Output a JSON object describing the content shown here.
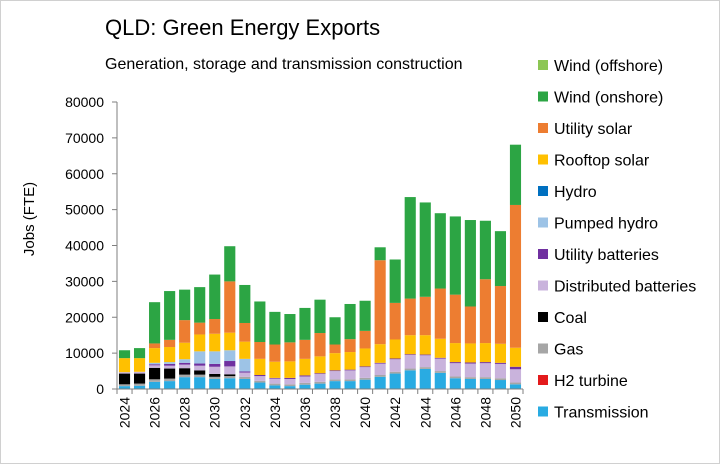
{
  "chart_data": {
    "type": "bar",
    "stacked": true,
    "title": "QLD: Green Energy Exports",
    "subtitle": "Generation, storage and transmission construction",
    "ylabel": "Jobs (FTE)",
    "xlabel": "",
    "ylim": [
      0,
      80000
    ],
    "yticks": [
      "0",
      "10000",
      "20000",
      "30000",
      "40000",
      "50000",
      "60000",
      "70000",
      "80000"
    ],
    "categories": [
      "2024",
      "2025",
      "2026",
      "2027",
      "2028",
      "2029",
      "2030",
      "2031",
      "2032",
      "2033",
      "2034",
      "2035",
      "2036",
      "2037",
      "2038",
      "2039",
      "2040",
      "2041",
      "2042",
      "2043",
      "2044",
      "2045",
      "2046",
      "2047",
      "2048",
      "2049",
      "2050"
    ],
    "x_tick_labels": [
      "2024",
      "2026",
      "2028",
      "2030",
      "2032",
      "2034",
      "2036",
      "2038",
      "2040",
      "2042",
      "2044",
      "2046",
      "2048",
      "2050"
    ],
    "legend_position": "right",
    "series": [
      {
        "name": "Transmission",
        "color": "#29abe2",
        "values": [
          800,
          900,
          2000,
          2200,
          3300,
          3300,
          2800,
          3000,
          2800,
          1800,
          1000,
          800,
          1200,
          1500,
          2200,
          2200,
          2600,
          3400,
          4300,
          5200,
          5600,
          4500,
          3000,
          2800,
          2800,
          2500,
          1300
        ]
      },
      {
        "name": "H2 turbine",
        "color": "#e31a1c",
        "values": [
          0,
          0,
          0,
          0,
          0,
          0,
          0,
          0,
          0,
          0,
          0,
          0,
          0,
          0,
          0,
          0,
          0,
          0,
          0,
          0,
          0,
          0,
          0,
          0,
          0,
          0,
          0
        ]
      },
      {
        "name": "Gas",
        "color": "#a6a6a6",
        "values": [
          500,
          600,
          700,
          700,
          700,
          700,
          600,
          600,
          600,
          500,
          500,
          500,
          500,
          500,
          500,
          500,
          500,
          500,
          500,
          500,
          500,
          500,
          500,
          500,
          500,
          500,
          500
        ]
      },
      {
        "name": "Coal",
        "color": "#000000",
        "values": [
          3000,
          2800,
          3200,
          2800,
          1800,
          1200,
          800,
          500,
          0,
          0,
          0,
          0,
          0,
          0,
          0,
          0,
          0,
          0,
          0,
          0,
          0,
          0,
          0,
          0,
          0,
          0,
          0
        ]
      },
      {
        "name": "Distributed batteries",
        "color": "#c9b3dc",
        "values": [
          400,
          500,
          700,
          800,
          1000,
          1300,
          2000,
          2200,
          1200,
          1300,
          1400,
          1500,
          1800,
          2200,
          2300,
          2500,
          3000,
          3200,
          3500,
          3800,
          3300,
          3500,
          3700,
          3800,
          3900,
          4000,
          3700
        ]
      },
      {
        "name": "Utility batteries",
        "color": "#7030a0",
        "values": [
          0,
          0,
          300,
          500,
          500,
          600,
          800,
          1500,
          300,
          300,
          200,
          300,
          300,
          200,
          200,
          200,
          200,
          200,
          200,
          200,
          200,
          200,
          300,
          300,
          300,
          300,
          700
        ]
      },
      {
        "name": "Pumped hydro",
        "color": "#9dc3e6",
        "values": [
          0,
          0,
          400,
          500,
          1000,
          3400,
          3500,
          3000,
          3500,
          0,
          0,
          0,
          0,
          0,
          0,
          0,
          0,
          0,
          0,
          0,
          0,
          0,
          0,
          0,
          0,
          0,
          0
        ]
      },
      {
        "name": "Hydro",
        "color": "#0070c0",
        "values": [
          0,
          0,
          0,
          0,
          0,
          0,
          0,
          0,
          0,
          0,
          0,
          0,
          0,
          0,
          0,
          0,
          0,
          0,
          0,
          0,
          0,
          0,
          0,
          0,
          0,
          0,
          0
        ]
      },
      {
        "name": "Rooftop solar",
        "color": "#ffc000",
        "values": [
          3900,
          3800,
          4100,
          4200,
          4600,
          4700,
          4900,
          4900,
          4800,
          4500,
          4500,
          4600,
          4600,
          4700,
          4800,
          4900,
          5000,
          5200,
          5300,
          5300,
          5400,
          5300,
          5300,
          5300,
          5300,
          5300,
          5300
        ]
      },
      {
        "name": "Utility solar",
        "color": "#ed7d31",
        "values": [
          0,
          0,
          1300,
          2000,
          6300,
          3300,
          4100,
          14300,
          5200,
          4700,
          4800,
          5300,
          5300,
          6500,
          2400,
          3600,
          4900,
          23400,
          10200,
          10200,
          10700,
          14000,
          13500,
          10300,
          17800,
          16100,
          39800
        ]
      },
      {
        "name": "Wind (onshore)",
        "color": "#2ca544",
        "values": [
          2200,
          2800,
          11500,
          13600,
          8500,
          9900,
          12400,
          9800,
          10600,
          11300,
          9100,
          7900,
          8900,
          9300,
          7600,
          9800,
          8400,
          3600,
          12100,
          28300,
          26300,
          21000,
          21800,
          24100,
          16300,
          15300,
          16800
        ]
      },
      {
        "name": "Wind (offshore)",
        "color": "#8cc654",
        "values": [
          0,
          0,
          0,
          0,
          0,
          0,
          0,
          0,
          0,
          0,
          0,
          0,
          0,
          0,
          0,
          0,
          0,
          0,
          0,
          0,
          0,
          0,
          0,
          0,
          0,
          0,
          0
        ]
      }
    ],
    "legend_order": [
      "Wind (offshore)",
      "Wind (onshore)",
      "Utility solar",
      "Rooftop solar",
      "Hydro",
      "Pumped hydro",
      "Utility batteries",
      "Distributed batteries",
      "Coal",
      "Gas",
      "H2 turbine",
      "Transmission"
    ],
    "grid": false
  }
}
